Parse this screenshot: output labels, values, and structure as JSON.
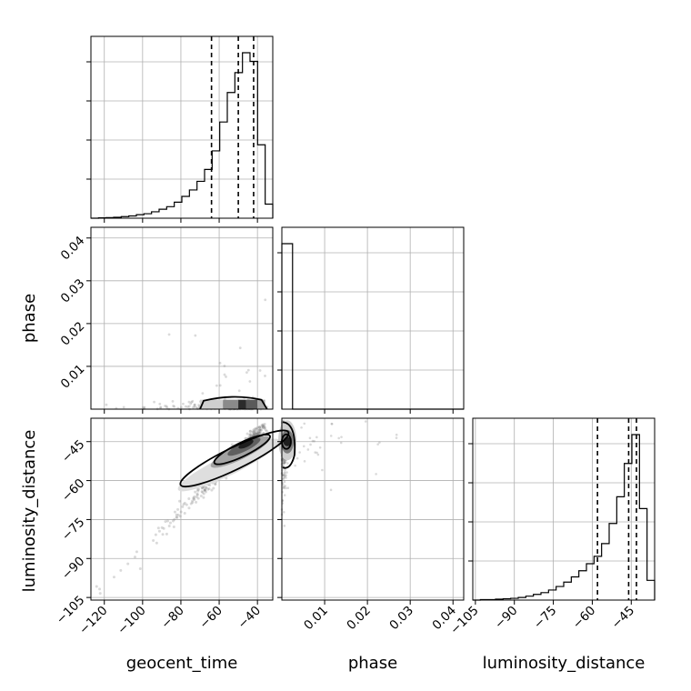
{
  "chart_data": {
    "type": "corner",
    "parameters": [
      "geocent_time",
      "phase",
      "luminosity_distance"
    ],
    "axes": {
      "geocent_time": {
        "label": "geocent_time",
        "range": [
          -127,
          -32
        ],
        "ticks": [
          -120,
          -100,
          -80,
          -60,
          -40
        ],
        "tick_labels": [
          "−120",
          "−100",
          "−80",
          "−60",
          "−40"
        ]
      },
      "phase": {
        "label": "phase",
        "range": [
          0.0,
          0.0425
        ],
        "ticks": [
          0.01,
          0.02,
          0.03,
          0.04
        ],
        "tick_labels": [
          "0.01",
          "0.02",
          "0.03",
          "0.04"
        ]
      },
      "luminosity_distance": {
        "label": "luminosity_distance",
        "range": [
          -106,
          -36
        ],
        "ticks": [
          -105,
          -90,
          -75,
          -60,
          -45
        ],
        "tick_labels": [
          "−105",
          "−90",
          "−75",
          "−60",
          "−45"
        ]
      }
    },
    "histograms": {
      "geocent_time": {
        "bin_edges": [
          -127,
          -123.04,
          -119.08,
          -115.13,
          -111.17,
          -107.21,
          -103.25,
          -99.29,
          -95.33,
          -91.38,
          -87.42,
          -83.46,
          -79.5,
          -75.54,
          -71.58,
          -67.63,
          -63.67,
          -59.71,
          -55.75,
          -51.79,
          -47.83,
          -43.88,
          -39.92,
          -35.96,
          -32
        ],
        "counts": [
          0,
          1,
          2,
          3,
          5,
          7,
          11,
          14,
          20,
          28,
          36,
          50,
          68,
          88,
          115,
          152,
          210,
          300,
          392,
          454,
          516,
          489,
          229,
          44
        ]
      },
      "phase": {
        "bin_edges": [
          0.0,
          0.0025,
          0.005,
          0.0075,
          0.01,
          0.0125,
          0.015,
          0.0175,
          0.02,
          0.0225,
          0.025,
          0.0275,
          0.03,
          0.0325,
          0.035,
          0.0375,
          0.04,
          0.0425
        ],
        "counts": [
          100,
          0,
          0,
          0,
          0,
          0,
          0,
          0,
          0,
          0,
          0,
          0,
          0,
          0,
          0,
          0,
          0
        ]
      },
      "luminosity_distance": {
        "bin_edges": [
          -106,
          -103.08,
          -100.17,
          -97.25,
          -94.33,
          -91.42,
          -88.5,
          -85.58,
          -82.67,
          -79.75,
          -76.83,
          -73.92,
          -71,
          -68.08,
          -65.17,
          -62.25,
          -59.33,
          -56.42,
          -53.5,
          -50.58,
          -47.67,
          -44.75,
          -41.83,
          -38.92,
          -36
        ],
        "counts": [
          0,
          1,
          1,
          2,
          3,
          4,
          6,
          9,
          13,
          17,
          23,
          31,
          41,
          53,
          67,
          83,
          100,
          129,
          175,
          236,
          312,
          378,
          209,
          45
        ]
      }
    },
    "quantiles": {
      "geocent_time": [
        -64,
        -50,
        -42
      ],
      "luminosity_distance": [
        -58,
        -46,
        -43
      ]
    },
    "grid": true,
    "legend": "none"
  }
}
